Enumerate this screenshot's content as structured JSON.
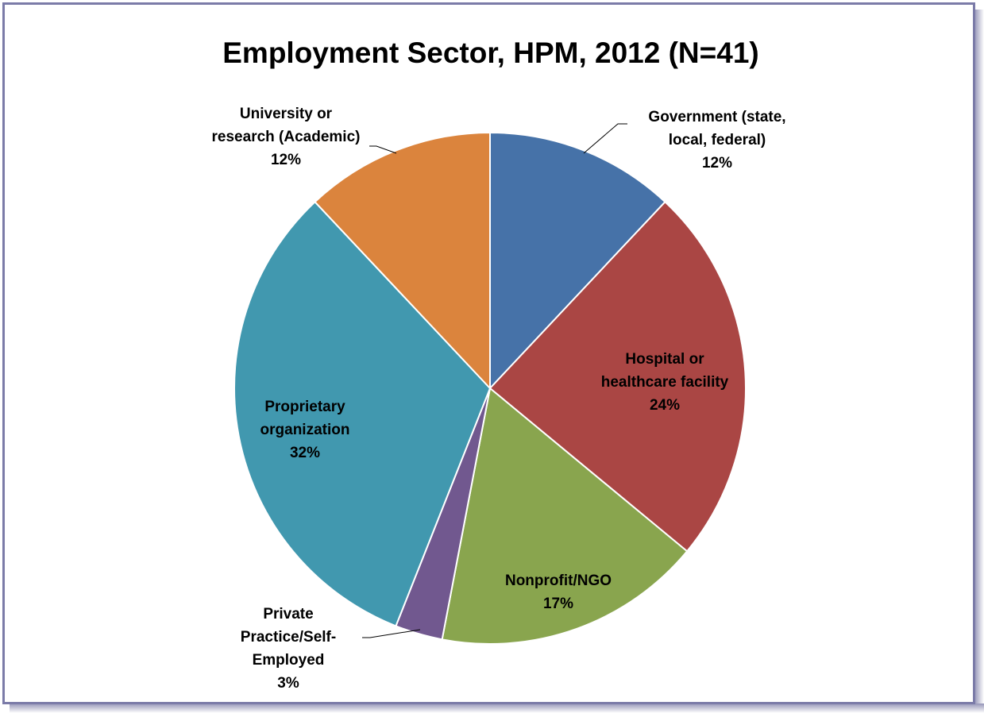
{
  "chart_data": {
    "type": "pie",
    "title": "Employment Sector, HPM, 2012 (N=41)",
    "slices": [
      {
        "label_lines": [
          "Government (state,",
          "local, federal)",
          "12%"
        ],
        "value": 12,
        "color": "#4672a8"
      },
      {
        "label_lines": [
          "Hospital or",
          "healthcare facility",
          "24%"
        ],
        "value": 24,
        "color": "#aa4644"
      },
      {
        "label_lines": [
          "Nonprofit/NGO",
          "17%"
        ],
        "value": 17,
        "color": "#89a54e"
      },
      {
        "label_lines": [
          "Private",
          "Practice/Self-",
          "Employed",
          "3%"
        ],
        "value": 3,
        "color": "#71588f"
      },
      {
        "label_lines": [
          "Proprietary",
          "organization",
          "32%"
        ],
        "value": 32,
        "color": "#4198af"
      },
      {
        "label_lines": [
          "University or",
          "research (Academic)",
          "12%"
        ],
        "value": 12,
        "color": "#db843d"
      }
    ],
    "legend": "none"
  }
}
